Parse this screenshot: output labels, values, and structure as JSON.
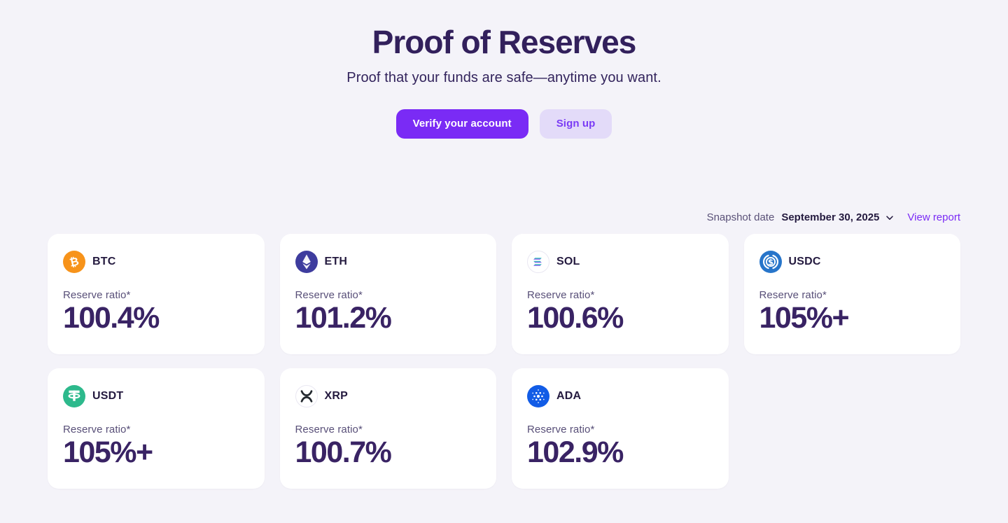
{
  "page": {
    "title": "Proof of Reserves",
    "subtitle": "Proof that your funds are safe—anytime you want.",
    "primary_button_label": "Verify your account",
    "secondary_button_label": "Sign up",
    "snapshot_label": "Snapshot date",
    "snapshot_date": "September 30, 2025",
    "view_report_label": "View report",
    "ratio_label": "Reserve ratio*"
  },
  "colors": {
    "background": "#F4F3F9",
    "card_background": "#FFFFFF",
    "heading_ink": "#32205C",
    "value_ink": "#392364",
    "muted_label": "#584F78",
    "accent_purple": "#7A2BF5",
    "accent_purple_light": "#E3DBF9"
  },
  "icons": {
    "snapshot_dropdown": "chevron-down-icon"
  },
  "cards": [
    {
      "symbol": "BTC",
      "icon": "btc-coin-icon",
      "icon_bg": "#F7931A",
      "ratio": "100.4%"
    },
    {
      "symbol": "ETH",
      "icon": "eth-coin-icon",
      "icon_bg": "#3E3C9E",
      "ratio": "101.2%"
    },
    {
      "symbol": "SOL",
      "icon": "sol-coin-icon",
      "icon_bg": "#FFFFFF",
      "ratio": "100.6%"
    },
    {
      "symbol": "USDC",
      "icon": "usdc-coin-icon",
      "icon_bg": "#2775CA",
      "ratio": "105%+"
    },
    {
      "symbol": "USDT",
      "icon": "usdt-coin-icon",
      "icon_bg": "#2DB98C",
      "ratio": "105%+"
    },
    {
      "symbol": "XRP",
      "icon": "xrp-coin-icon",
      "icon_bg": "#FFFFFF",
      "ratio": "100.7%"
    },
    {
      "symbol": "ADA",
      "icon": "ada-coin-icon",
      "icon_bg": "#125CE6",
      "ratio": "102.9%"
    }
  ]
}
